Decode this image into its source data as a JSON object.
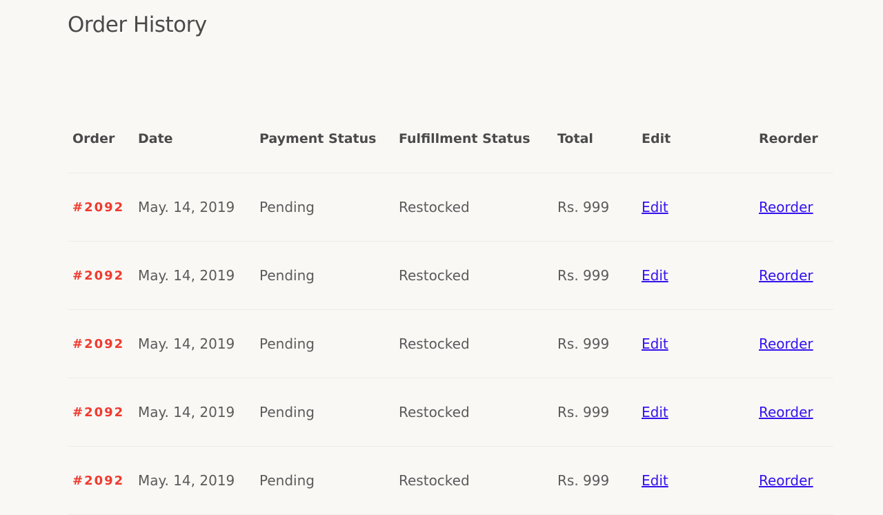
{
  "page": {
    "title": "Order History"
  },
  "colors": {
    "order_number": "#f03a2e",
    "link": "#3311ee",
    "background": "#f9f8f5"
  },
  "table": {
    "headers": [
      "Order",
      "Date",
      "Payment Status",
      "Fulfillment Status",
      "Total",
      "Edit",
      "Reorder"
    ],
    "rows": [
      {
        "order": "#2092",
        "date": "May. 14, 2019",
        "payment": "Pending",
        "fulfillment": "Restocked",
        "total": "Rs. 999",
        "edit": "Edit",
        "reorder": "Reorder"
      },
      {
        "order": "#2092",
        "date": "May. 14, 2019",
        "payment": "Pending",
        "fulfillment": "Restocked",
        "total": "Rs. 999",
        "edit": "Edit",
        "reorder": "Reorder"
      },
      {
        "order": "#2092",
        "date": "May. 14, 2019",
        "payment": "Pending",
        "fulfillment": "Restocked",
        "total": "Rs. 999",
        "edit": "Edit",
        "reorder": "Reorder"
      },
      {
        "order": "#2092",
        "date": "May. 14, 2019",
        "payment": "Pending",
        "fulfillment": "Restocked",
        "total": "Rs. 999",
        "edit": "Edit",
        "reorder": "Reorder"
      },
      {
        "order": "#2092",
        "date": "May. 14, 2019",
        "payment": "Pending",
        "fulfillment": "Restocked",
        "total": "Rs. 999",
        "edit": "Edit",
        "reorder": "Reorder"
      }
    ]
  }
}
